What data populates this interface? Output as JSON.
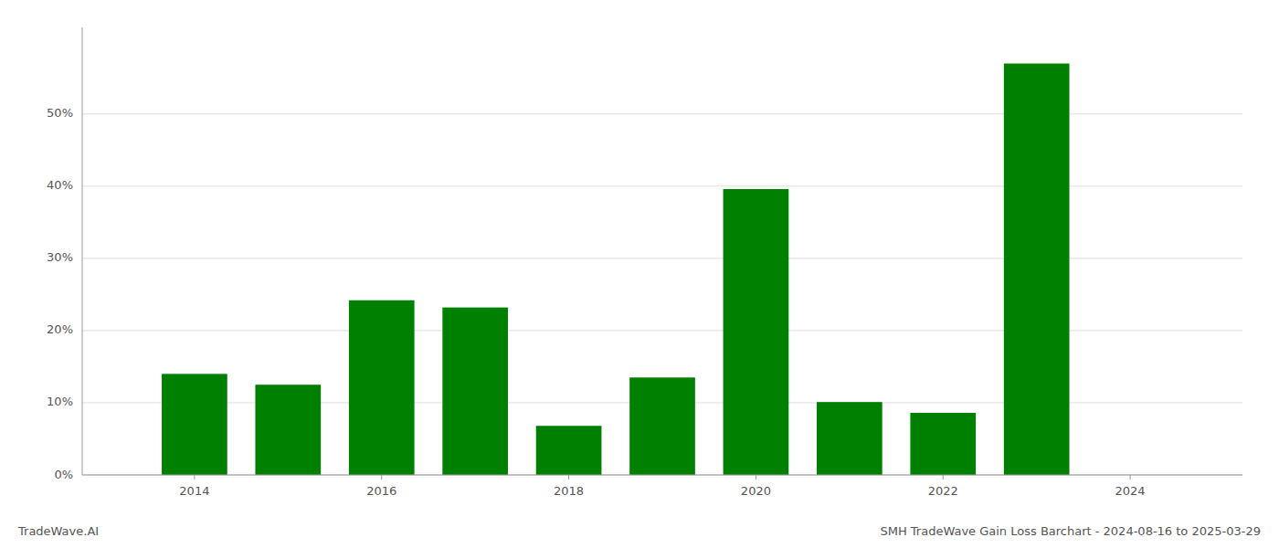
{
  "chart_data": {
    "type": "bar",
    "title": "SMH TradeWave Gain Loss Barchart - 2024-08-16 to 2025-03-29",
    "annotations": [
      {
        "text": "TradeWave.AI"
      }
    ],
    "x": [
      2014,
      2015,
      2016,
      2017,
      2018,
      2019,
      2020,
      2021,
      2022,
      2023
    ],
    "values": [
      0.14,
      0.125,
      0.242,
      0.232,
      0.068,
      0.135,
      0.396,
      0.101,
      0.086,
      0.57
    ],
    "color": "#008000",
    "xlim": [
      2012.8,
      2025.2
    ],
    "xticks": [
      2014,
      2016,
      2018,
      2020,
      2022,
      2024
    ],
    "ylim": [
      0,
      0.62
    ],
    "yticks": [
      {
        "value": 0.0,
        "label": "0%"
      },
      {
        "value": 0.1,
        "label": "10%"
      },
      {
        "value": 0.2,
        "label": "20%"
      },
      {
        "value": 0.3,
        "label": "30%"
      },
      {
        "value": 0.4,
        "label": "40%"
      },
      {
        "value": 0.5,
        "label": "50%"
      }
    ],
    "grid": true
  }
}
